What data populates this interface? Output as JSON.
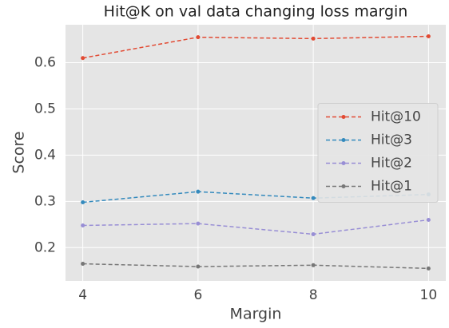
{
  "chart_data": {
    "type": "line",
    "title": "Hit@K on val data changing loss margin",
    "x_label": "Margin",
    "y_label": "Score",
    "x": [
      4,
      6,
      8,
      10
    ],
    "series": [
      {
        "name": "Hit@10",
        "color": "#E24A33",
        "values": [
          0.61,
          0.655,
          0.652,
          0.657
        ]
      },
      {
        "name": "Hit@3",
        "color": "#348ABD",
        "values": [
          0.298,
          0.321,
          0.307,
          0.315
        ]
      },
      {
        "name": "Hit@2",
        "color": "#988ED5",
        "values": [
          0.248,
          0.252,
          0.229,
          0.26
        ]
      },
      {
        "name": "Hit@1",
        "color": "#777777",
        "values": [
          0.165,
          0.159,
          0.162,
          0.155
        ]
      }
    ],
    "xlim": [
      3.7,
      10.3
    ],
    "xticks": [
      4,
      6,
      8,
      10
    ],
    "ylim": [
      0.128,
      0.682
    ],
    "yticks": [
      {
        "value": 0.2,
        "label": "0.2"
      },
      {
        "value": 0.3,
        "label": "0.3"
      },
      {
        "value": 0.4,
        "label": "0.4"
      },
      {
        "value": 0.5,
        "label": "0.5"
      },
      {
        "value": 0.6,
        "label": "0.6"
      }
    ],
    "grid": true,
    "legend": "center right"
  }
}
